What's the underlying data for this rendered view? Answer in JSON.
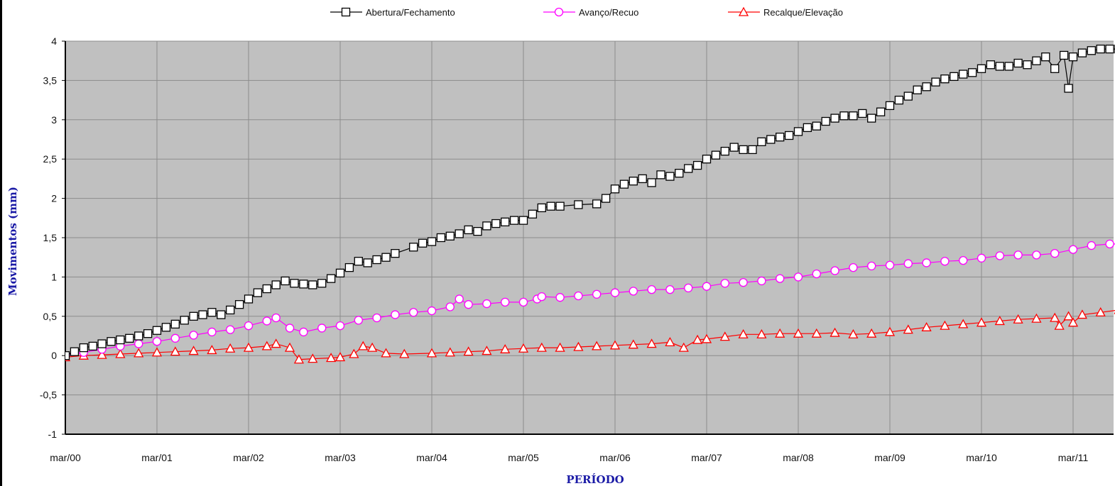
{
  "chart_data": {
    "type": "line",
    "xlabel": "PERÍODO",
    "ylabel": "Movimentos (mm)",
    "ylim": [
      -1,
      4
    ],
    "yticks": [
      "4",
      "3,5",
      "3",
      "2,5",
      "2",
      "1,5",
      "1",
      "0,5",
      "0",
      "-0,5",
      "-1"
    ],
    "xlim": [
      2000.0,
      2011.6
    ],
    "xticks": [
      {
        "value": 2000,
        "label": "mar/00"
      },
      {
        "value": 2001,
        "label": "mar/01"
      },
      {
        "value": 2002,
        "label": "mar/02"
      },
      {
        "value": 2003,
        "label": "mar/03"
      },
      {
        "value": 2004,
        "label": "mar/04"
      },
      {
        "value": 2005,
        "label": "mar/05"
      },
      {
        "value": 2006,
        "label": "mar/06"
      },
      {
        "value": 2007,
        "label": "mar/07"
      },
      {
        "value": 2008,
        "label": "mar/08"
      },
      {
        "value": 2009,
        "label": "mar/09"
      },
      {
        "value": 2010,
        "label": "mar/10"
      },
      {
        "value": 2011,
        "label": "mar/11"
      }
    ],
    "grid": true,
    "legend_position": "top",
    "plot_background": "#c0c0c0",
    "series": [
      {
        "name": "Abertura/Fechamento",
        "color": "#000000",
        "marker": "square",
        "points": [
          [
            2000.0,
            0.0
          ],
          [
            2000.1,
            0.05
          ],
          [
            2000.2,
            0.1
          ],
          [
            2000.3,
            0.12
          ],
          [
            2000.4,
            0.15
          ],
          [
            2000.5,
            0.18
          ],
          [
            2000.6,
            0.2
          ],
          [
            2000.7,
            0.22
          ],
          [
            2000.8,
            0.25
          ],
          [
            2000.9,
            0.28
          ],
          [
            2001.0,
            0.32
          ],
          [
            2001.1,
            0.36
          ],
          [
            2001.2,
            0.4
          ],
          [
            2001.3,
            0.45
          ],
          [
            2001.4,
            0.5
          ],
          [
            2001.5,
            0.52
          ],
          [
            2001.6,
            0.55
          ],
          [
            2001.7,
            0.52
          ],
          [
            2001.8,
            0.58
          ],
          [
            2001.9,
            0.65
          ],
          [
            2002.0,
            0.72
          ],
          [
            2002.1,
            0.8
          ],
          [
            2002.2,
            0.85
          ],
          [
            2002.3,
            0.9
          ],
          [
            2002.4,
            0.95
          ],
          [
            2002.5,
            0.92
          ],
          [
            2002.6,
            0.91
          ],
          [
            2002.7,
            0.9
          ],
          [
            2002.8,
            0.92
          ],
          [
            2002.9,
            0.98
          ],
          [
            2003.0,
            1.05
          ],
          [
            2003.1,
            1.12
          ],
          [
            2003.2,
            1.2
          ],
          [
            2003.3,
            1.18
          ],
          [
            2003.4,
            1.22
          ],
          [
            2003.5,
            1.25
          ],
          [
            2003.6,
            1.3
          ],
          [
            2003.8,
            1.38
          ],
          [
            2003.9,
            1.43
          ],
          [
            2004.0,
            1.45
          ],
          [
            2004.1,
            1.5
          ],
          [
            2004.2,
            1.52
          ],
          [
            2004.3,
            1.55
          ],
          [
            2004.4,
            1.6
          ],
          [
            2004.5,
            1.58
          ],
          [
            2004.6,
            1.65
          ],
          [
            2004.7,
            1.68
          ],
          [
            2004.8,
            1.7
          ],
          [
            2004.9,
            1.72
          ],
          [
            2005.0,
            1.72
          ],
          [
            2005.1,
            1.8
          ],
          [
            2005.2,
            1.88
          ],
          [
            2005.3,
            1.9
          ],
          [
            2005.4,
            1.9
          ],
          [
            2005.6,
            1.92
          ],
          [
            2005.8,
            1.93
          ],
          [
            2005.9,
            2.0
          ],
          [
            2006.0,
            2.12
          ],
          [
            2006.1,
            2.18
          ],
          [
            2006.2,
            2.22
          ],
          [
            2006.3,
            2.25
          ],
          [
            2006.4,
            2.2
          ],
          [
            2006.5,
            2.3
          ],
          [
            2006.6,
            2.28
          ],
          [
            2006.7,
            2.32
          ],
          [
            2006.8,
            2.38
          ],
          [
            2006.9,
            2.42
          ],
          [
            2007.0,
            2.5
          ],
          [
            2007.1,
            2.55
          ],
          [
            2007.2,
            2.6
          ],
          [
            2007.3,
            2.65
          ],
          [
            2007.4,
            2.62
          ],
          [
            2007.5,
            2.62
          ],
          [
            2007.6,
            2.72
          ],
          [
            2007.7,
            2.75
          ],
          [
            2007.8,
            2.78
          ],
          [
            2007.9,
            2.8
          ],
          [
            2008.0,
            2.85
          ],
          [
            2008.1,
            2.9
          ],
          [
            2008.2,
            2.92
          ],
          [
            2008.3,
            2.98
          ],
          [
            2008.4,
            3.02
          ],
          [
            2008.5,
            3.05
          ],
          [
            2008.6,
            3.05
          ],
          [
            2008.7,
            3.08
          ],
          [
            2008.8,
            3.02
          ],
          [
            2008.9,
            3.1
          ],
          [
            2009.0,
            3.18
          ],
          [
            2009.1,
            3.25
          ],
          [
            2009.2,
            3.3
          ],
          [
            2009.3,
            3.38
          ],
          [
            2009.4,
            3.42
          ],
          [
            2009.5,
            3.48
          ],
          [
            2009.6,
            3.52
          ],
          [
            2009.7,
            3.55
          ],
          [
            2009.8,
            3.58
          ],
          [
            2009.9,
            3.6
          ],
          [
            2010.0,
            3.65
          ],
          [
            2010.1,
            3.7
          ],
          [
            2010.2,
            3.68
          ],
          [
            2010.3,
            3.68
          ],
          [
            2010.4,
            3.72
          ],
          [
            2010.5,
            3.7
          ],
          [
            2010.6,
            3.75
          ],
          [
            2010.7,
            3.8
          ],
          [
            2010.8,
            3.65
          ],
          [
            2010.9,
            3.82
          ],
          [
            2010.95,
            3.4
          ],
          [
            2011.0,
            3.8
          ],
          [
            2011.1,
            3.85
          ],
          [
            2011.2,
            3.88
          ],
          [
            2011.3,
            3.9
          ],
          [
            2011.4,
            3.9
          ],
          [
            2011.5,
            3.9
          ],
          [
            2011.6,
            3.88
          ]
        ]
      },
      {
        "name": "Avanço/Recuo",
        "color": "#ff00ff",
        "marker": "circle",
        "points": [
          [
            2000.0,
            0.0
          ],
          [
            2000.2,
            0.04
          ],
          [
            2000.4,
            0.08
          ],
          [
            2000.6,
            0.12
          ],
          [
            2000.8,
            0.15
          ],
          [
            2001.0,
            0.18
          ],
          [
            2001.2,
            0.22
          ],
          [
            2001.4,
            0.26
          ],
          [
            2001.6,
            0.3
          ],
          [
            2001.8,
            0.33
          ],
          [
            2002.0,
            0.38
          ],
          [
            2002.2,
            0.44
          ],
          [
            2002.3,
            0.48
          ],
          [
            2002.45,
            0.35
          ],
          [
            2002.6,
            0.3
          ],
          [
            2002.8,
            0.35
          ],
          [
            2003.0,
            0.38
          ],
          [
            2003.2,
            0.45
          ],
          [
            2003.4,
            0.48
          ],
          [
            2003.6,
            0.52
          ],
          [
            2003.8,
            0.55
          ],
          [
            2004.0,
            0.57
          ],
          [
            2004.2,
            0.62
          ],
          [
            2004.3,
            0.72
          ],
          [
            2004.4,
            0.65
          ],
          [
            2004.6,
            0.66
          ],
          [
            2004.8,
            0.68
          ],
          [
            2005.0,
            0.68
          ],
          [
            2005.15,
            0.72
          ],
          [
            2005.2,
            0.75
          ],
          [
            2005.4,
            0.74
          ],
          [
            2005.6,
            0.76
          ],
          [
            2005.8,
            0.78
          ],
          [
            2006.0,
            0.8
          ],
          [
            2006.2,
            0.82
          ],
          [
            2006.4,
            0.84
          ],
          [
            2006.6,
            0.84
          ],
          [
            2006.8,
            0.86
          ],
          [
            2007.0,
            0.88
          ],
          [
            2007.2,
            0.92
          ],
          [
            2007.4,
            0.93
          ],
          [
            2007.6,
            0.95
          ],
          [
            2007.8,
            0.98
          ],
          [
            2008.0,
            1.0
          ],
          [
            2008.2,
            1.04
          ],
          [
            2008.4,
            1.08
          ],
          [
            2008.6,
            1.12
          ],
          [
            2008.8,
            1.14
          ],
          [
            2009.0,
            1.15
          ],
          [
            2009.2,
            1.17
          ],
          [
            2009.4,
            1.18
          ],
          [
            2009.6,
            1.2
          ],
          [
            2009.8,
            1.21
          ],
          [
            2010.0,
            1.24
          ],
          [
            2010.2,
            1.27
          ],
          [
            2010.4,
            1.28
          ],
          [
            2010.6,
            1.28
          ],
          [
            2010.8,
            1.3
          ],
          [
            2011.0,
            1.35
          ],
          [
            2011.2,
            1.4
          ],
          [
            2011.4,
            1.42
          ],
          [
            2011.6,
            1.42
          ]
        ]
      },
      {
        "name": "Recalque/Elevação",
        "color": "#ff0000",
        "marker": "triangle",
        "points": [
          [
            2000.0,
            -0.02
          ],
          [
            2000.2,
            0.0
          ],
          [
            2000.4,
            0.01
          ],
          [
            2000.6,
            0.02
          ],
          [
            2000.8,
            0.03
          ],
          [
            2001.0,
            0.04
          ],
          [
            2001.2,
            0.05
          ],
          [
            2001.4,
            0.06
          ],
          [
            2001.6,
            0.07
          ],
          [
            2001.8,
            0.09
          ],
          [
            2002.0,
            0.1
          ],
          [
            2002.2,
            0.12
          ],
          [
            2002.3,
            0.15
          ],
          [
            2002.45,
            0.1
          ],
          [
            2002.55,
            -0.05
          ],
          [
            2002.7,
            -0.04
          ],
          [
            2002.9,
            -0.03
          ],
          [
            2003.0,
            -0.02
          ],
          [
            2003.15,
            0.02
          ],
          [
            2003.25,
            0.12
          ],
          [
            2003.35,
            0.1
          ],
          [
            2003.5,
            0.03
          ],
          [
            2003.7,
            0.02
          ],
          [
            2004.0,
            0.03
          ],
          [
            2004.2,
            0.04
          ],
          [
            2004.4,
            0.05
          ],
          [
            2004.6,
            0.06
          ],
          [
            2004.8,
            0.08
          ],
          [
            2005.0,
            0.09
          ],
          [
            2005.2,
            0.1
          ],
          [
            2005.4,
            0.1
          ],
          [
            2005.6,
            0.11
          ],
          [
            2005.8,
            0.12
          ],
          [
            2006.0,
            0.13
          ],
          [
            2006.2,
            0.14
          ],
          [
            2006.4,
            0.15
          ],
          [
            2006.6,
            0.17
          ],
          [
            2006.75,
            0.1
          ],
          [
            2006.9,
            0.2
          ],
          [
            2007.0,
            0.21
          ],
          [
            2007.2,
            0.24
          ],
          [
            2007.4,
            0.27
          ],
          [
            2007.6,
            0.27
          ],
          [
            2007.8,
            0.28
          ],
          [
            2008.0,
            0.28
          ],
          [
            2008.2,
            0.28
          ],
          [
            2008.4,
            0.29
          ],
          [
            2008.6,
            0.27
          ],
          [
            2008.8,
            0.28
          ],
          [
            2009.0,
            0.3
          ],
          [
            2009.2,
            0.33
          ],
          [
            2009.4,
            0.36
          ],
          [
            2009.6,
            0.38
          ],
          [
            2009.8,
            0.4
          ],
          [
            2010.0,
            0.42
          ],
          [
            2010.2,
            0.44
          ],
          [
            2010.4,
            0.46
          ],
          [
            2010.6,
            0.47
          ],
          [
            2010.8,
            0.48
          ],
          [
            2010.85,
            0.38
          ],
          [
            2010.95,
            0.5
          ],
          [
            2011.0,
            0.42
          ],
          [
            2011.1,
            0.52
          ],
          [
            2011.3,
            0.55
          ],
          [
            2011.5,
            0.58
          ],
          [
            2011.6,
            0.6
          ]
        ]
      }
    ]
  }
}
